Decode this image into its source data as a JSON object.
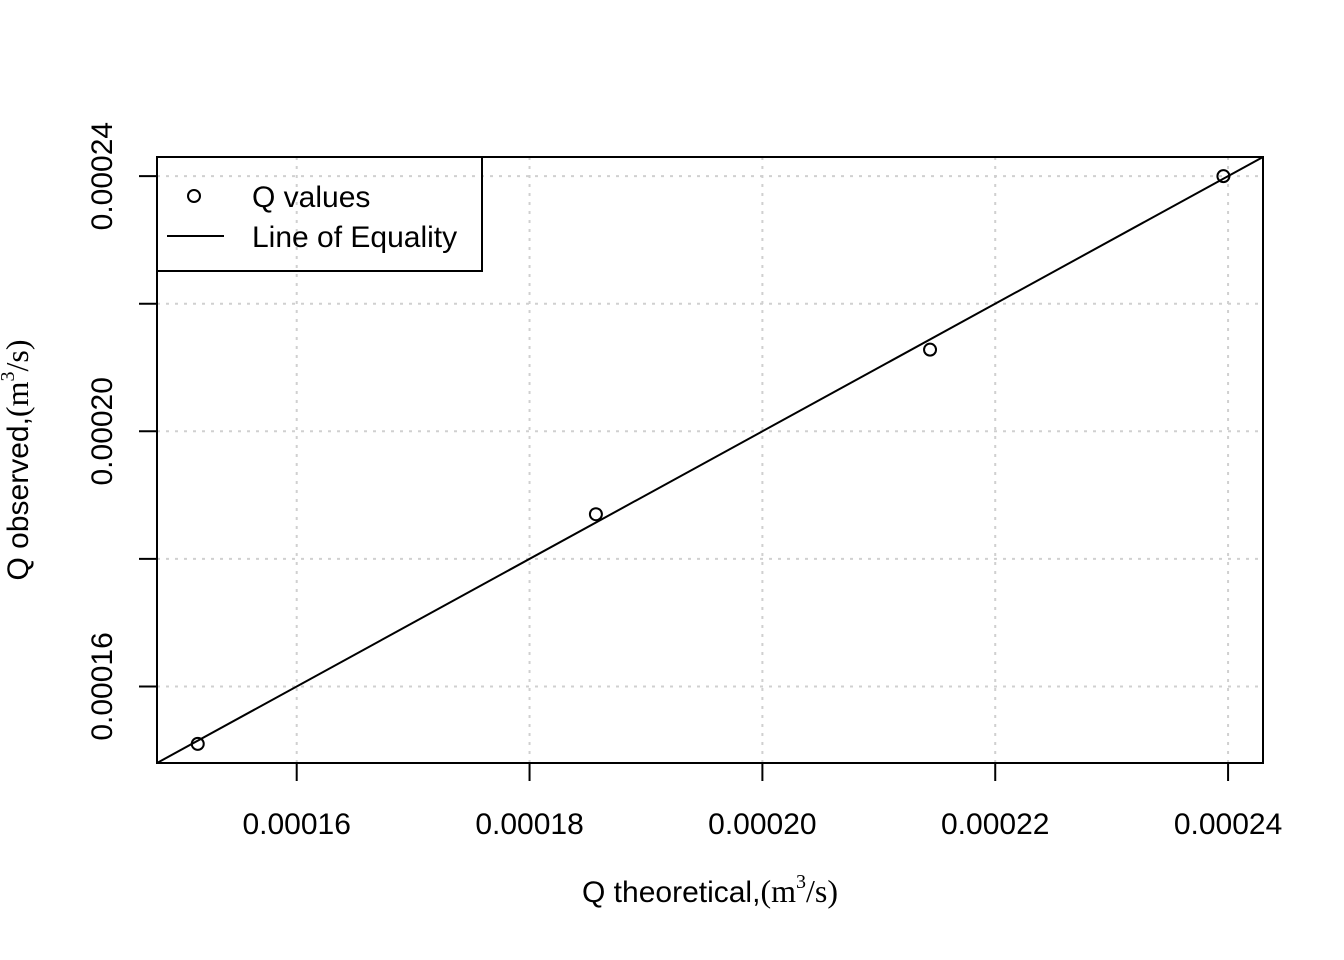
{
  "chart_data": {
    "type": "scatter",
    "xlabel": {
      "prefix": "Q theoretical,",
      "unit": "(m",
      "sup": "3",
      "tail": "/s)"
    },
    "ylabel": {
      "prefix": "Q observed,",
      "unit": "(m",
      "sup": "3",
      "tail": "/s)"
    },
    "xlim": [
      0.000148,
      0.000243
    ],
    "ylim": [
      0.000148,
      0.000243
    ],
    "x_ticks": [
      0.00016,
      0.00018,
      0.0002,
      0.00022,
      0.00024
    ],
    "x_tick_labels": [
      "0.00016",
      "0.00018",
      "0.00020",
      "0.00022",
      "0.00024"
    ],
    "y_ticks": [
      0.00016,
      0.00018,
      0.0002,
      0.00022,
      0.00024
    ],
    "y_tick_labels": [
      "0.00016",
      "",
      "0.00020",
      "",
      "0.00024"
    ],
    "grid": true,
    "legend_position": "top-left",
    "legend": [
      "Q values",
      "Line of Equality"
    ],
    "series": [
      {
        "name": "Q values",
        "x": [
          0.0001515,
          0.0001857,
          0.0002144,
          0.0002396
        ],
        "y": [
          0.000151,
          0.000187,
          0.0002128,
          0.00024
        ]
      }
    ],
    "reference_line": {
      "name": "Line of Equality",
      "slope": 1,
      "intercept": 0
    }
  }
}
